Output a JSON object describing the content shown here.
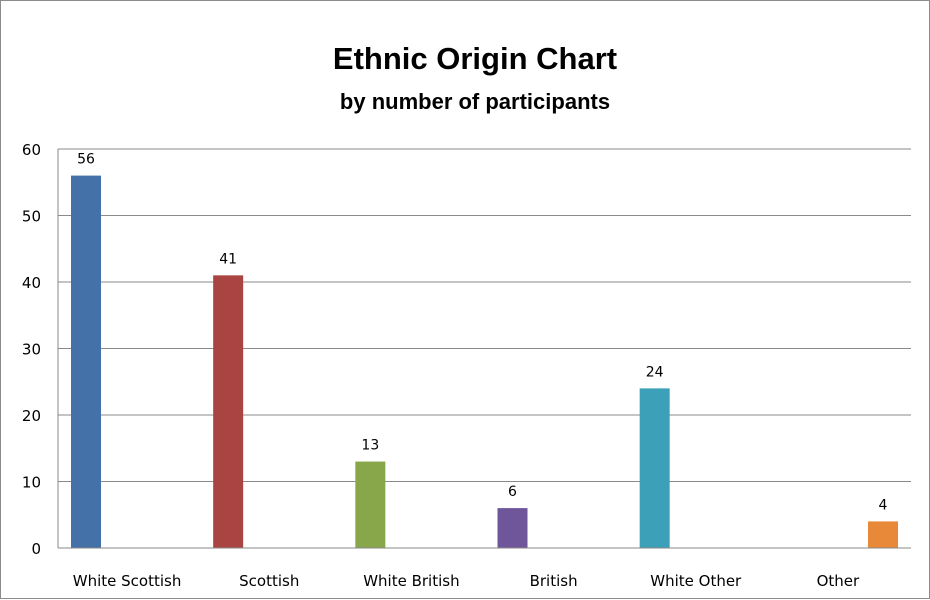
{
  "chart_data": {
    "type": "bar",
    "title": "Ethnic Origin Chart",
    "subtitle": "by number of participants",
    "xlabel": "",
    "ylabel": "",
    "categories": [
      "White Scottish",
      "Scottish",
      "White British",
      "British",
      "White Other",
      "Other"
    ],
    "values": [
      56,
      41,
      13,
      6,
      24,
      4
    ],
    "colors": [
      "#4472a8",
      "#a94442",
      "#88a74a",
      "#6f559a",
      "#3ba0b8",
      "#e8893a"
    ],
    "ylim": [
      0,
      60
    ],
    "yticks": [
      0,
      10,
      20,
      30,
      40,
      50,
      60
    ],
    "grid": true,
    "legend": "none",
    "data_labels": true
  }
}
